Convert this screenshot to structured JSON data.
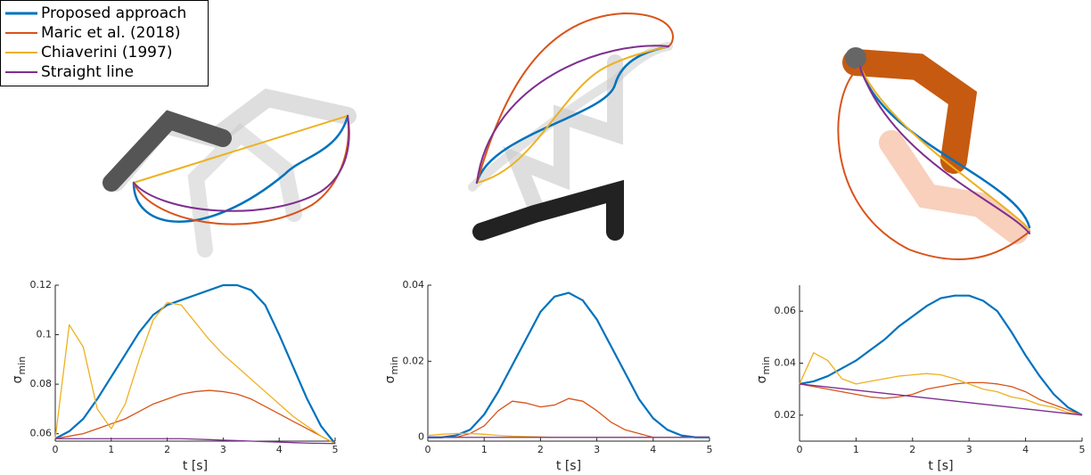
{
  "chart_data": [
    {
      "type": "line",
      "xlabel": "t [s]",
      "ylabel": "σ",
      "ylabel_sub": "min",
      "x": [
        0,
        0.25,
        0.5,
        0.75,
        1,
        1.25,
        1.5,
        1.75,
        2,
        2.25,
        2.5,
        2.75,
        3,
        3.25,
        3.5,
        3.75,
        4,
        4.25,
        4.5,
        4.75,
        5
      ],
      "xlim": [
        0,
        5
      ],
      "xticks": [
        0,
        1,
        2,
        3,
        4,
        5
      ],
      "ylim": [
        0.057,
        0.12
      ],
      "yticks": [
        0.06,
        0.08,
        0.1,
        0.12
      ],
      "series": [
        {
          "name": "Proposed approach",
          "color": "#0072bd",
          "values": [
            0.058,
            0.061,
            0.066,
            0.074,
            0.083,
            0.092,
            0.101,
            0.108,
            0.112,
            0.114,
            0.116,
            0.118,
            0.12,
            0.12,
            0.118,
            0.112,
            0.1,
            0.087,
            0.074,
            0.063,
            0.056
          ]
        },
        {
          "name": "Maric et al. (2018)",
          "color": "#d95319",
          "values": [
            0.058,
            0.059,
            0.06,
            0.062,
            0.064,
            0.066,
            0.069,
            0.072,
            0.074,
            0.076,
            0.077,
            0.0775,
            0.077,
            0.076,
            0.074,
            0.071,
            0.068,
            0.065,
            0.062,
            0.059,
            0.056
          ]
        },
        {
          "name": "Chiaverini (1997)",
          "color": "#edb120",
          "values": [
            0.058,
            0.104,
            0.095,
            0.07,
            0.062,
            0.072,
            0.09,
            0.106,
            0.113,
            0.112,
            0.105,
            0.098,
            0.092,
            0.087,
            0.082,
            0.077,
            0.072,
            0.067,
            0.063,
            0.059,
            0.056
          ]
        },
        {
          "name": "Straight line",
          "color": "#7e2f8e",
          "values": [
            0.058,
            0.058,
            0.058,
            0.058,
            0.058,
            0.058,
            0.058,
            0.058,
            0.058,
            0.058,
            0.0578,
            0.0576,
            0.0574,
            0.0572,
            0.057,
            0.0568,
            0.0566,
            0.0564,
            0.0562,
            0.0561,
            0.056
          ]
        }
      ]
    },
    {
      "type": "line",
      "xlabel": "t [s]",
      "ylabel": "σ",
      "ylabel_sub": "min",
      "x": [
        0,
        0.25,
        0.5,
        0.75,
        1,
        1.25,
        1.5,
        1.75,
        2,
        2.25,
        2.5,
        2.75,
        3,
        3.25,
        3.5,
        3.75,
        4,
        4.25,
        4.5,
        4.75,
        5
      ],
      "xlim": [
        0,
        5
      ],
      "xticks": [
        0,
        1,
        2,
        3,
        4,
        5
      ],
      "ylim": [
        -0.001,
        0.04
      ],
      "yticks": [
        0,
        0.02,
        0.04
      ],
      "series": [
        {
          "color": "#0072bd",
          "values": [
            0,
            0,
            0.0005,
            0.002,
            0.006,
            0.012,
            0.019,
            0.026,
            0.033,
            0.037,
            0.038,
            0.036,
            0.031,
            0.024,
            0.017,
            0.01,
            0.005,
            0.002,
            0.0005,
            0,
            0
          ]
        },
        {
          "color": "#d95319",
          "values": [
            0,
            0,
            0,
            0.001,
            0.003,
            0.007,
            0.0095,
            0.009,
            0.008,
            0.0085,
            0.0102,
            0.0095,
            0.007,
            0.004,
            0.002,
            0.001,
            0,
            0,
            0,
            0,
            0
          ]
        },
        {
          "color": "#edb120",
          "values": [
            0.0005,
            0.0008,
            0.001,
            0.001,
            0.0008,
            0.0005,
            0.0003,
            0.0002,
            0.0001,
            0,
            0,
            0,
            0,
            0,
            0,
            0,
            0,
            0,
            0,
            0,
            0
          ]
        },
        {
          "color": "#7e2f8e",
          "values": [
            0,
            0,
            0,
            0,
            0,
            0,
            0,
            0,
            0,
            0,
            0,
            0,
            0,
            0,
            0,
            0,
            0,
            0,
            0,
            0,
            0
          ]
        }
      ]
    },
    {
      "type": "line",
      "xlabel": "t [s]",
      "ylabel": "σ",
      "ylabel_sub": "min",
      "x": [
        0,
        0.25,
        0.5,
        0.75,
        1,
        1.25,
        1.5,
        1.75,
        2,
        2.25,
        2.5,
        2.75,
        3,
        3.25,
        3.5,
        3.75,
        4,
        4.25,
        4.5,
        4.75,
        5
      ],
      "xlim": [
        0,
        5
      ],
      "xticks": [
        0,
        1,
        2,
        3,
        4,
        5
      ],
      "ylim": [
        0.01,
        0.07
      ],
      "yticks": [
        0.02,
        0.04,
        0.06
      ],
      "series": [
        {
          "color": "#0072bd",
          "values": [
            0.032,
            0.033,
            0.035,
            0.038,
            0.041,
            0.045,
            0.049,
            0.054,
            0.058,
            0.062,
            0.065,
            0.066,
            0.066,
            0.064,
            0.06,
            0.052,
            0.043,
            0.035,
            0.028,
            0.023,
            0.02
          ]
        },
        {
          "color": "#d95319",
          "values": [
            0.032,
            0.031,
            0.03,
            0.029,
            0.028,
            0.027,
            0.0265,
            0.027,
            0.028,
            0.03,
            0.031,
            0.032,
            0.0325,
            0.0325,
            0.032,
            0.031,
            0.029,
            0.026,
            0.024,
            0.022,
            0.02
          ]
        },
        {
          "color": "#edb120",
          "values": [
            0.032,
            0.044,
            0.041,
            0.034,
            0.032,
            0.033,
            0.034,
            0.035,
            0.0355,
            0.036,
            0.0355,
            0.034,
            0.032,
            0.03,
            0.029,
            0.027,
            0.026,
            0.024,
            0.023,
            0.021,
            0.02
          ]
        },
        {
          "color": "#7e2f8e",
          "values": [
            0.032,
            0.0314,
            0.0308,
            0.0302,
            0.0296,
            0.029,
            0.0284,
            0.0278,
            0.0272,
            0.0266,
            0.026,
            0.0254,
            0.0248,
            0.0242,
            0.0236,
            0.023,
            0.0224,
            0.0218,
            0.0212,
            0.0206,
            0.02
          ]
        }
      ]
    }
  ]
}
